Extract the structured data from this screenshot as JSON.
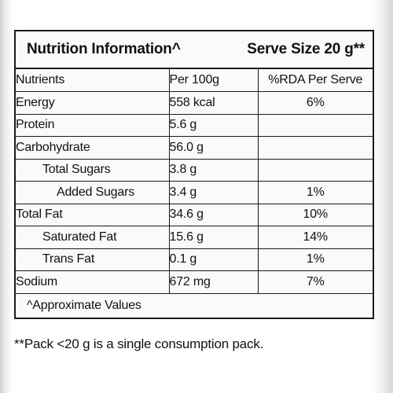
{
  "header": {
    "title": "Nutrition Information^",
    "serve_size": "Serve Size 20 g**"
  },
  "columns": {
    "nutrients": "Nutrients",
    "per_100g": "Per 100g",
    "rda": "%RDA Per Serve"
  },
  "rows": [
    {
      "name": "Energy",
      "per_100g": "558 kcal",
      "rda": "6%"
    },
    {
      "name": "Protein",
      "per_100g": "5.6 g",
      "rda": ""
    },
    {
      "name": "Carbohydrate",
      "per_100g": "56.0 g",
      "rda": ""
    },
    {
      "name": "Total Sugars",
      "per_100g": "3.8 g",
      "rda": ""
    },
    {
      "name": "Added Sugars",
      "per_100g": "3.4 g",
      "rda": "1%"
    },
    {
      "name": "Total Fat",
      "per_100g": "34.6 g",
      "rda": "10%"
    },
    {
      "name": "Saturated Fat",
      "per_100g": "15.6 g",
      "rda": "14%"
    },
    {
      "name": "Trans Fat",
      "per_100g": "0.1 g",
      "rda": "1%"
    },
    {
      "name": "Sodium",
      "per_100g": "672 mg",
      "rda": "7%"
    }
  ],
  "footer": {
    "approx_note": "^Approximate Values",
    "pack_note": "**Pack <20 g is a single consumption pack."
  }
}
